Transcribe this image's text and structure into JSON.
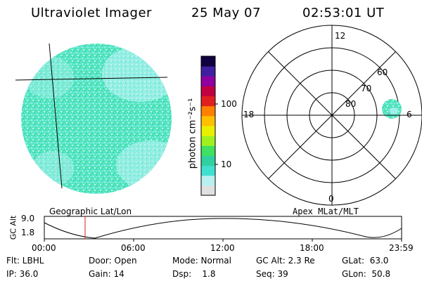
{
  "header": {
    "title": "Ultraviolet Imager",
    "date": "25 May 07",
    "time": "02:53:01 UT"
  },
  "colorbar": {
    "unit_label": "photon cm⁻²s⁻¹",
    "tick_100": "100",
    "tick_10": "10",
    "colors": [
      "#e0e0e0",
      "#b8f0f0",
      "#40e0d0",
      "#30d0a0",
      "#40e060",
      "#a0f020",
      "#e8f000",
      "#ffc000",
      "#ff8000",
      "#e02020",
      "#c00040",
      "#9000a0",
      "#4020a0",
      "#100040"
    ]
  },
  "polar": {
    "labels": {
      "top": "12",
      "bottom": "0",
      "left": "18",
      "right": "6"
    },
    "lat_labels": [
      "60",
      "70",
      "80"
    ]
  },
  "timeline": {
    "left_title": "Geographic Lat/Lon",
    "right_title": "Apex MLat/MLT",
    "y_axis_label": "GC Alt",
    "y_top": "9.0",
    "y_bottom": "1.8",
    "x_ticks": [
      "00:00",
      "06:00",
      "12:00",
      "18:00",
      "23:59"
    ]
  },
  "info": {
    "flt": "Flt: LBHL",
    "ip": "IP: 36.0",
    "door": "Door: Open",
    "gain": "Gain: 14",
    "mode": "Mode: Normal",
    "dsp": "Dsp:    1.8",
    "gcalt": "GC Alt: 2.3 Re",
    "seq": "Seq: 39",
    "glat": "GLat:  63.0",
    "glon": "GLon:  50.8"
  }
}
